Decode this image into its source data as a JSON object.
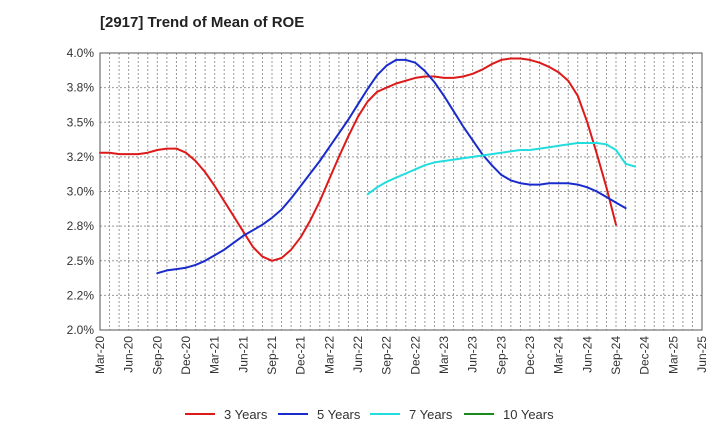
{
  "chart_data": {
    "type": "line",
    "title": "[2917]  Trend of Mean of ROE",
    "xlabel": "",
    "ylabel": "",
    "ylim": [
      2.0,
      4.0
    ],
    "y_ticks": [
      "2.0%",
      "2.2%",
      "2.5%",
      "2.8%",
      "3.0%",
      "3.2%",
      "3.5%",
      "3.8%",
      "4.0%"
    ],
    "x_ticks": [
      "Mar-20",
      "Jun-20",
      "Sep-20",
      "Dec-20",
      "Mar-21",
      "Jun-21",
      "Sep-21",
      "Dec-21",
      "Mar-22",
      "Jun-22",
      "Sep-22",
      "Dec-22",
      "Mar-23",
      "Jun-23",
      "Sep-23",
      "Dec-23",
      "Mar-24",
      "Jun-24",
      "Sep-24",
      "Dec-24",
      "Mar-25",
      "Jun-25"
    ],
    "grid": true,
    "legend_position": "bottom",
    "series": [
      {
        "name": "3 Years",
        "color": "#dd1a1a",
        "values": [
          3.28,
          3.28,
          3.27,
          3.27,
          3.27,
          3.28,
          3.3,
          3.31,
          3.31,
          3.28,
          3.22,
          3.14,
          3.04,
          2.93,
          2.82,
          2.71,
          2.6,
          2.53,
          2.5,
          2.52,
          2.58,
          2.67,
          2.79,
          2.93,
          3.09,
          3.25,
          3.4,
          3.54,
          3.65,
          3.72,
          3.75,
          3.78,
          3.8,
          3.82,
          3.83,
          3.83,
          3.82,
          3.82,
          3.83,
          3.85,
          3.88,
          3.92,
          3.95,
          3.96,
          3.96,
          3.95,
          3.93,
          3.9,
          3.86,
          3.8,
          3.69,
          3.5,
          3.27,
          3.03,
          2.76
        ]
      },
      {
        "name": "5 Years",
        "color": "#1a2bcc",
        "values": [
          null,
          null,
          null,
          null,
          null,
          null,
          2.41,
          2.43,
          2.44,
          2.45,
          2.47,
          2.5,
          2.54,
          2.58,
          2.63,
          2.68,
          2.72,
          2.76,
          2.81,
          2.87,
          2.95,
          3.04,
          3.13,
          3.22,
          3.32,
          3.42,
          3.52,
          3.63,
          3.74,
          3.84,
          3.91,
          3.95,
          3.95,
          3.93,
          3.87,
          3.79,
          3.69,
          3.58,
          3.47,
          3.37,
          3.27,
          3.19,
          3.12,
          3.08,
          3.06,
          3.05,
          3.05,
          3.06,
          3.06,
          3.06,
          3.05,
          3.03,
          3.0,
          2.96,
          2.92,
          2.88
        ]
      },
      {
        "name": "7 Years",
        "color": "#22dddd",
        "values": [
          null,
          null,
          null,
          null,
          null,
          null,
          null,
          null,
          null,
          null,
          null,
          null,
          null,
          null,
          null,
          null,
          null,
          null,
          null,
          null,
          null,
          null,
          null,
          null,
          null,
          null,
          null,
          null,
          2.98,
          3.03,
          3.07,
          3.1,
          3.13,
          3.16,
          3.19,
          3.21,
          3.22,
          3.23,
          3.24,
          3.25,
          3.26,
          3.27,
          3.28,
          3.29,
          3.3,
          3.3,
          3.31,
          3.32,
          3.33,
          3.34,
          3.35,
          3.35,
          3.35,
          3.34,
          3.3,
          3.2,
          3.18
        ]
      },
      {
        "name": "10 Years",
        "color": "#1a8a1a",
        "values": []
      }
    ]
  }
}
